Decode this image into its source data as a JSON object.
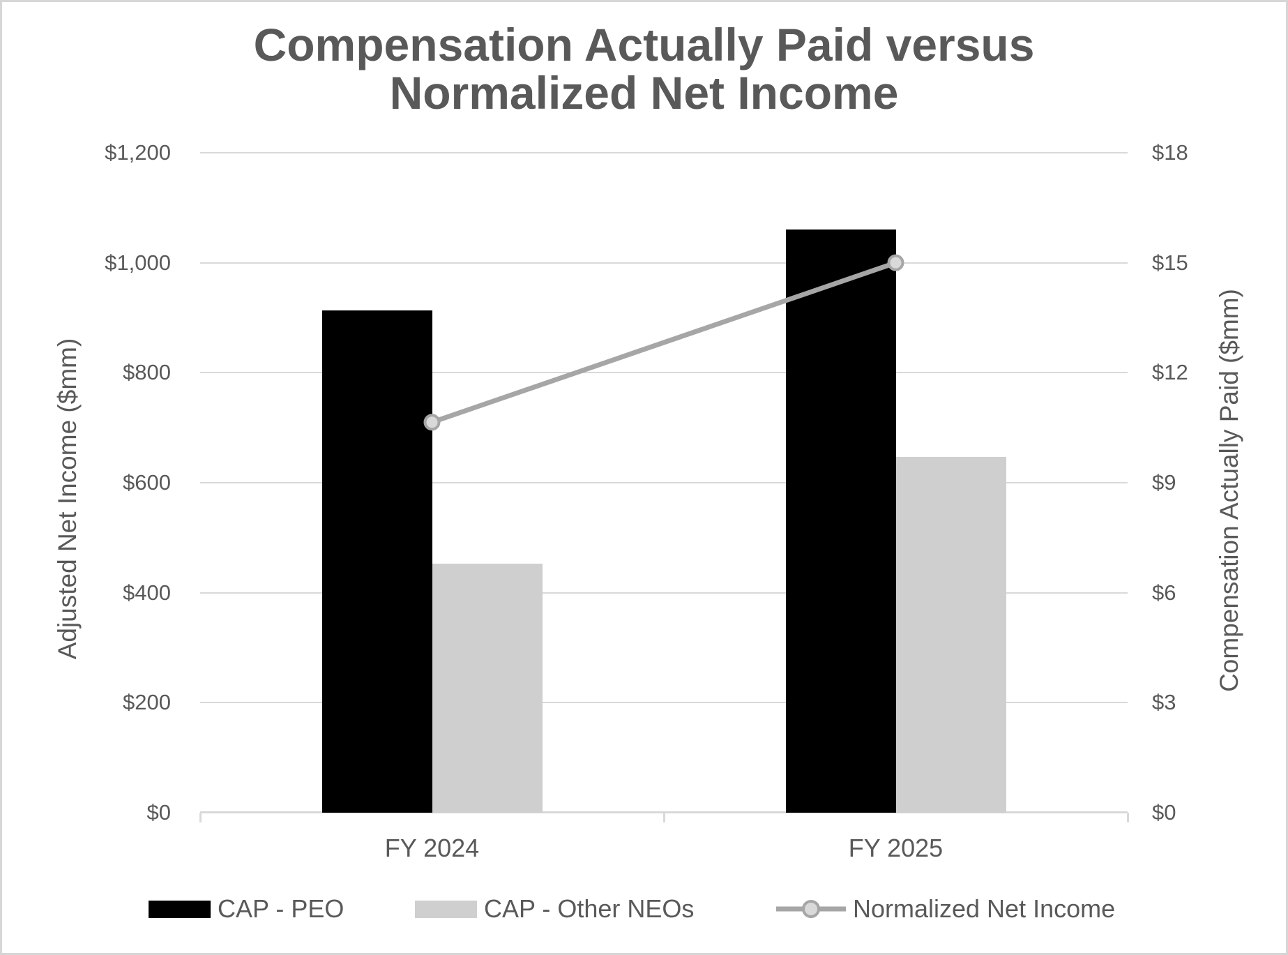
{
  "canvas": {
    "background": "#ffffff",
    "border_color": "#d6d6d6"
  },
  "chart_data": {
    "type": "combo",
    "title": "Compensation Actually Paid versus Normalized Net Income",
    "categories": [
      "FY 2024",
      "FY 2025"
    ],
    "series": [
      {
        "name": "CAP - PEO",
        "type": "bar",
        "axis": "right",
        "values": [
          13.7,
          15.9
        ],
        "color": "#000000"
      },
      {
        "name": "CAP - Other NEOs",
        "type": "bar",
        "axis": "right",
        "values": [
          6.8,
          9.7
        ],
        "color": "#cfcfcf"
      },
      {
        "name": "Normalized Net Income",
        "type": "line",
        "axis": "left",
        "values": [
          710,
          1000
        ],
        "color": "#a6a6a6",
        "marker_fill": "#d9d9d9"
      }
    ],
    "left_axis": {
      "label": "Adjusted Net Income ($mm)",
      "range": [
        0,
        1200
      ],
      "ticks": [
        "$1,200",
        "$1,000",
        "$800",
        "$600",
        "$400",
        "$200",
        "$0"
      ]
    },
    "right_axis": {
      "label": "Compensation Actually Paid ($mm)",
      "range": [
        0,
        18
      ],
      "ticks": [
        "$18",
        "$15",
        "$12",
        "$9",
        "$6",
        "$3",
        "$0"
      ]
    },
    "grid": true,
    "legend_position": "bottom",
    "colors": {
      "text": "#595959",
      "gridline": "#d9d9d9",
      "axis_line": "#d9d9d9"
    }
  }
}
